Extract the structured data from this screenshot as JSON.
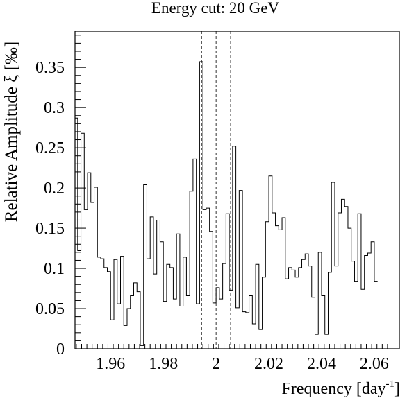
{
  "chart_data": {
    "type": "line",
    "title": "Energy cut: 20 GeV",
    "xlabel": "Frequency [day",
    "xlabel_sup": "-1",
    "xlabel_end": "]",
    "ylabel": "Relative Amplitude ξ [‰]",
    "xlim": [
      1.9465,
      2.0695
    ],
    "ylim": [
      0,
      0.395
    ],
    "xticks": [
      1.96,
      1.98,
      2,
      2.02,
      2.04,
      2.06
    ],
    "xtick_labels": [
      "1.96",
      "1.98",
      "2",
      "2.02",
      "2.04",
      "2.06"
    ],
    "yticks": [
      0,
      0.05,
      0.1,
      0.15,
      0.2,
      0.25,
      0.3,
      0.35
    ],
    "ytick_labels": [
      "0",
      "0.05",
      "0.1",
      "0.15",
      "0.2",
      "0.25",
      "0.3",
      "0.35"
    ],
    "bin_width": 0.00125,
    "bin_start": 1.94625,
    "values": [
      0.287,
      0.122,
      0.268,
      0.173,
      0.219,
      0.182,
      0.201,
      0.114,
      0.112,
      0.101,
      0.096,
      0.036,
      0.111,
      0.056,
      0.115,
      0.029,
      0.05,
      0.066,
      0.082,
      0.071,
      0.004,
      0.204,
      0.112,
      0.164,
      0.093,
      0.16,
      0.133,
      0.059,
      0.105,
      0.101,
      0.062,
      0.143,
      0.053,
      0.114,
      0.066,
      0.196,
      0.236,
      0.056,
      0.357,
      0.173,
      0.175,
      0.146,
      0.057,
      0.076,
      0.062,
      0.106,
      0.168,
      0.073,
      0.252,
      0.051,
      0.197,
      0.046,
      0.045,
      0.066,
      0.031,
      0.105,
      0.024,
      0.089,
      0.158,
      0.215,
      0.169,
      0.153,
      0.148,
      0.163,
      0.087,
      0.101,
      0.098,
      0.089,
      0.101,
      0.111,
      0.118,
      0.103,
      0.064,
      0.018,
      0.12,
      0.066,
      0.018,
      0.095,
      0.207,
      0.103,
      0.169,
      0.186,
      0.177,
      0.15,
      0.109,
      0.084,
      0.168,
      0.074,
      0.116,
      0.119,
      0.133,
      0.084
    ],
    "vlines": [
      1.9945,
      2.0,
      2.0055
    ],
    "grid": false,
    "legend": "none"
  }
}
